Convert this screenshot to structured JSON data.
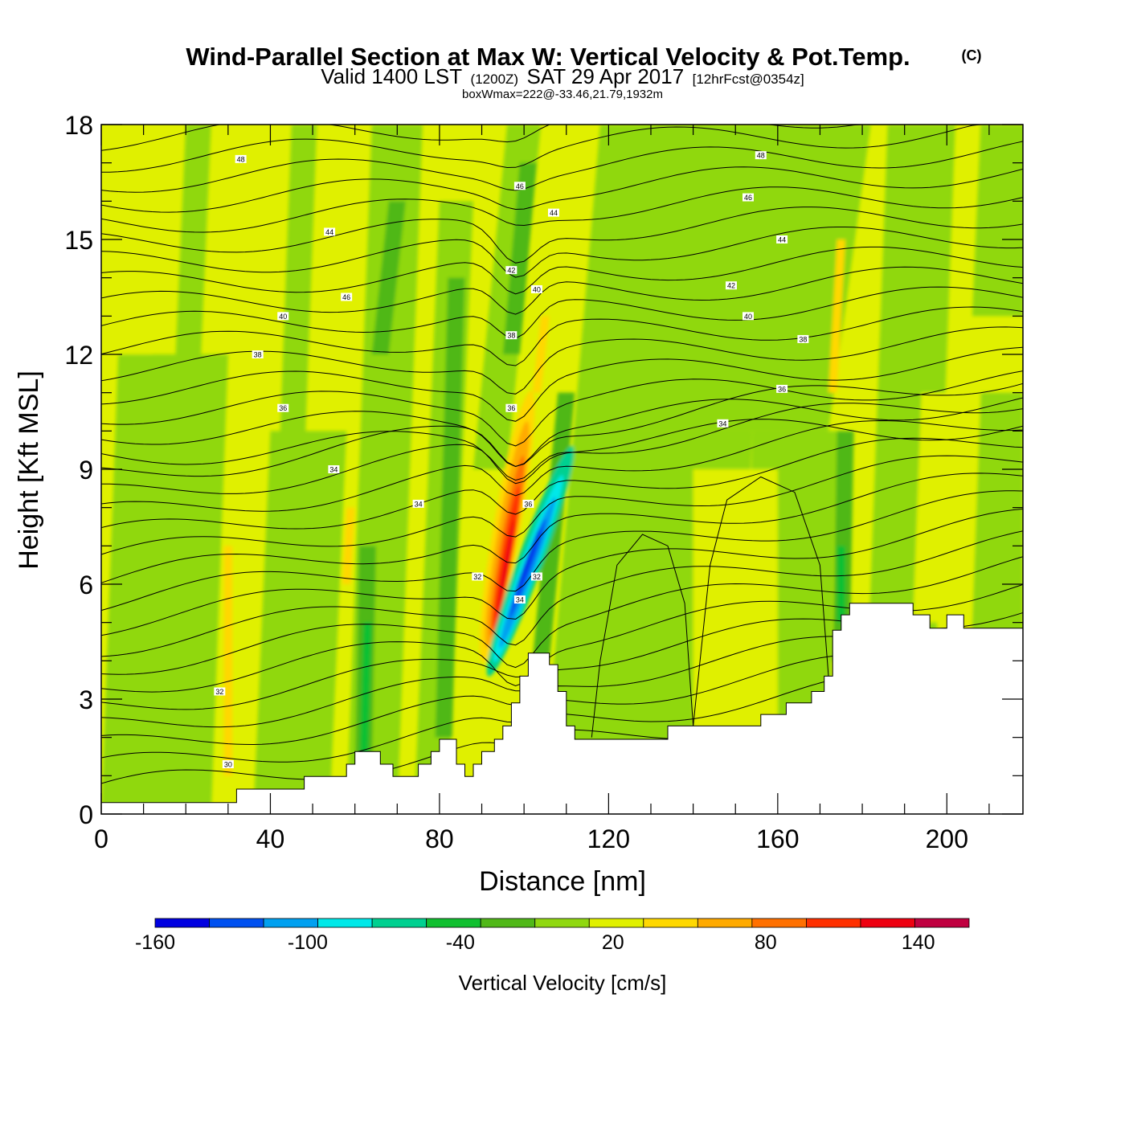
{
  "header": {
    "title": "Wind-Parallel Section at Max W: Vertical Velocity & Pot.Temp.",
    "copyright": "(C)",
    "valid_prefix": "Valid 1400 LST",
    "valid_utc": "(1200Z)",
    "valid_date": "SAT 29 Apr 2017",
    "forecast": "[12hrFcst@0354z]",
    "box_info": "boxWmax=222@-33.46,21.79,1932m"
  },
  "chart_data": {
    "type": "heatmap",
    "xlabel": "Distance [nm]",
    "ylabel": "Height [Kft MSL]",
    "xlim": [
      0,
      218
    ],
    "ylim": [
      0,
      18
    ],
    "x_ticks": [
      0,
      40,
      80,
      120,
      160,
      200
    ],
    "y_ticks": [
      0,
      3,
      6,
      9,
      12,
      15,
      18
    ],
    "colorbar": {
      "title": "Vertical Velocity [cm/s]",
      "bins": [
        -160,
        -130,
        -100,
        -70,
        -40,
        -10,
        20,
        50,
        80,
        110,
        140,
        170
      ],
      "colors": [
        "#0000e0",
        "#0050f0",
        "#00a0f0",
        "#00e8e8",
        "#00d090",
        "#10c030",
        "#50b818",
        "#90d810",
        "#e0f000",
        "#ffd800",
        "#ffaa00",
        "#ff7000",
        "#ff3000",
        "#ee0010",
        "#c00040"
      ],
      "labels": [
        "-160",
        "-100",
        "-40",
        "20",
        "80",
        "140"
      ]
    },
    "terrain": [
      [
        0,
        0.3
      ],
      [
        32,
        0.3
      ],
      [
        32,
        0.65
      ],
      [
        48,
        0.65
      ],
      [
        48,
        0.98
      ],
      [
        58,
        0.98
      ],
      [
        58,
        1.3
      ],
      [
        60,
        1.3
      ],
      [
        60,
        1.63
      ],
      [
        66,
        1.63
      ],
      [
        66,
        1.3
      ],
      [
        69,
        1.3
      ],
      [
        69,
        0.98
      ],
      [
        75,
        0.98
      ],
      [
        75,
        1.3
      ],
      [
        78,
        1.3
      ],
      [
        78,
        1.63
      ],
      [
        80,
        1.63
      ],
      [
        80,
        1.95
      ],
      [
        84,
        1.95
      ],
      [
        84,
        1.3
      ],
      [
        86,
        1.3
      ],
      [
        86,
        0.98
      ],
      [
        88,
        0.98
      ],
      [
        88,
        1.3
      ],
      [
        90,
        1.3
      ],
      [
        90,
        1.63
      ],
      [
        93,
        1.63
      ],
      [
        93,
        1.95
      ],
      [
        95,
        1.95
      ],
      [
        95,
        2.3
      ],
      [
        97,
        2.3
      ],
      [
        97,
        2.9
      ],
      [
        99,
        2.9
      ],
      [
        99,
        3.6
      ],
      [
        101,
        3.6
      ],
      [
        101,
        4.2
      ],
      [
        106,
        4.2
      ],
      [
        106,
        3.9
      ],
      [
        108,
        3.9
      ],
      [
        108,
        3.2
      ],
      [
        110,
        3.2
      ],
      [
        110,
        2.3
      ],
      [
        112,
        2.3
      ],
      [
        112,
        1.95
      ],
      [
        134,
        1.95
      ],
      [
        134,
        2.3
      ],
      [
        156,
        2.3
      ],
      [
        156,
        2.6
      ],
      [
        162,
        2.6
      ],
      [
        162,
        2.9
      ],
      [
        168,
        2.9
      ],
      [
        168,
        3.2
      ],
      [
        171,
        3.2
      ],
      [
        171,
        3.6
      ],
      [
        173,
        3.6
      ],
      [
        173,
        4.8
      ],
      [
        175,
        4.8
      ],
      [
        175,
        5.2
      ],
      [
        177,
        5.2
      ],
      [
        177,
        5.5
      ],
      [
        192,
        5.5
      ],
      [
        192,
        5.2
      ],
      [
        196,
        5.2
      ],
      [
        196,
        4.85
      ],
      [
        200,
        4.85
      ],
      [
        200,
        5.2
      ],
      [
        204,
        5.2
      ],
      [
        204,
        4.85
      ],
      [
        218,
        4.85
      ]
    ],
    "theta_contours": [
      {
        "value": "30",
        "label_at": [
          30,
          1.3
        ]
      },
      {
        "value": "32",
        "label_at": [
          28,
          3.2
        ]
      },
      {
        "value": "32",
        "label_at": [
          89,
          6.2
        ]
      },
      {
        "value": "32",
        "label_at": [
          103,
          6.2
        ]
      },
      {
        "value": "34",
        "label_at": [
          55,
          9.0
        ]
      },
      {
        "value": "34",
        "label_at": [
          75,
          8.1
        ]
      },
      {
        "value": "34",
        "label_at": [
          99,
          5.6
        ]
      },
      {
        "value": "34",
        "label_at": [
          147,
          10.2
        ]
      },
      {
        "value": "36",
        "label_at": [
          43,
          10.6
        ]
      },
      {
        "value": "36",
        "label_at": [
          97,
          10.6
        ]
      },
      {
        "value": "36",
        "label_at": [
          101,
          8.1
        ]
      },
      {
        "value": "36",
        "label_at": [
          161,
          11.1
        ]
      },
      {
        "value": "38",
        "label_at": [
          37,
          12.0
        ]
      },
      {
        "value": "38",
        "label_at": [
          97,
          12.5
        ]
      },
      {
        "value": "38",
        "label_at": [
          166,
          12.4
        ]
      },
      {
        "value": "40",
        "label_at": [
          43,
          13.0
        ]
      },
      {
        "value": "40",
        "label_at": [
          103,
          13.7
        ]
      },
      {
        "value": "40",
        "label_at": [
          153,
          13.0
        ]
      },
      {
        "value": "42",
        "label_at": [
          97,
          14.2
        ]
      },
      {
        "value": "42",
        "label_at": [
          149,
          13.8
        ]
      },
      {
        "value": "44",
        "label_at": [
          54,
          15.2
        ]
      },
      {
        "value": "44",
        "label_at": [
          107,
          15.7
        ]
      },
      {
        "value": "44",
        "label_at": [
          161,
          15.0
        ]
      },
      {
        "value": "46",
        "label_at": [
          58,
          13.5
        ]
      },
      {
        "value": "46",
        "label_at": [
          99,
          16.4
        ]
      },
      {
        "value": "46",
        "label_at": [
          153,
          16.1
        ]
      },
      {
        "value": "48",
        "label_at": [
          33,
          17.1
        ]
      },
      {
        "value": "48",
        "label_at": [
          156,
          17.2
        ]
      }
    ]
  }
}
